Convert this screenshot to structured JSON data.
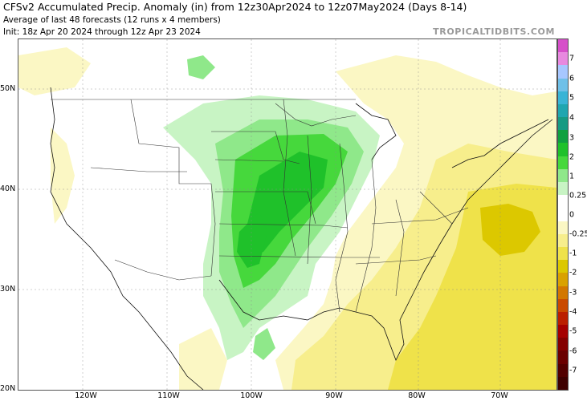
{
  "header": {
    "title": "CFSv2 Accumulated Precip. Anomaly (in) from 12z30Apr2024 to 12z07May2024 (Days 8-14)",
    "subtitle": "Average of last 48 forecasts (12 runs x 4 members)",
    "init": "Init: 18z Apr 20 2024 through 12z Apr 23 2024",
    "brand": "TROPICALTIDBITS.COM"
  },
  "axes": {
    "lat_labels": [
      "50N",
      "40N",
      "30N",
      "20N"
    ],
    "lon_labels": [
      "120W",
      "110W",
      "100W",
      "90W",
      "80W",
      "70W"
    ]
  },
  "colorbar": {
    "labels": [
      "7",
      "6",
      "5",
      "4",
      "3",
      "2",
      "1",
      "0.25",
      "0",
      "-0.25",
      "-1",
      "-2",
      "-3",
      "-4",
      "-5",
      "-6",
      "-7"
    ],
    "colors": [
      "#d64fc9",
      "#e889df",
      "#a7c7ff",
      "#6fc0e8",
      "#39b4d6",
      "#1fa6b0",
      "#169a83",
      "#10a040",
      "#1fc12a",
      "#46d83c",
      "#8fe88a",
      "#c8f4c4",
      "#ffffff",
      "#ffffff",
      "#fbf7c4",
      "#f7ee8c",
      "#efe24a",
      "#dcc800",
      "#d9a200",
      "#d27700",
      "#c94a00",
      "#bb1f00",
      "#a50000",
      "#840000",
      "#6a0000",
      "#520000",
      "#3d0000"
    ]
  }
}
